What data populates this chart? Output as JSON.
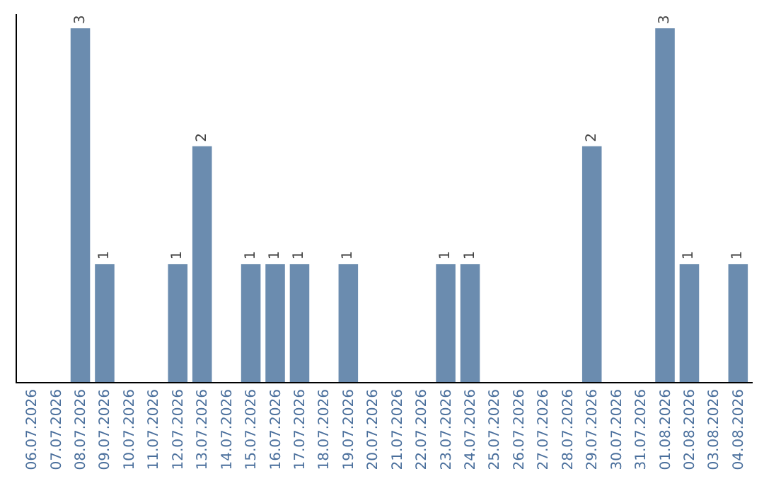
{
  "chart_data": {
    "type": "bar",
    "categories": [
      "06.07.2026",
      "07.07.2026",
      "08.07.2026",
      "09.07.2026",
      "10.07.2026",
      "11.07.2026",
      "12.07.2026",
      "13.07.2026",
      "14.07.2026",
      "15.07.2026",
      "16.07.2026",
      "17.07.2026",
      "18.07.2026",
      "19.07.2026",
      "20.07.2026",
      "21.07.2026",
      "22.07.2026",
      "23.07.2026",
      "24.07.2026",
      "25.07.2026",
      "26.07.2026",
      "27.07.2026",
      "28.07.2026",
      "29.07.2026",
      "30.07.2026",
      "31.07.2026",
      "01.08.2026",
      "02.08.2026",
      "03.08.2026",
      "04.08.2026"
    ],
    "values": [
      0,
      0,
      3,
      1,
      0,
      0,
      1,
      2,
      0,
      1,
      1,
      1,
      0,
      1,
      0,
      0,
      0,
      1,
      1,
      0,
      0,
      0,
      0,
      2,
      0,
      0,
      3,
      1,
      0,
      1
    ],
    "value_labels": [
      null,
      null,
      "3",
      "1",
      null,
      null,
      "1",
      "2",
      null,
      "1",
      "1",
      "1",
      null,
      "1",
      null,
      null,
      null,
      "1",
      "1",
      null,
      null,
      null,
      null,
      "2",
      null,
      null,
      "3",
      "1",
      null,
      "1"
    ],
    "color": "#6b8caf",
    "ylim": [
      0,
      3.12
    ],
    "tick_labels": "x",
    "grid": false,
    "legend": false
  }
}
